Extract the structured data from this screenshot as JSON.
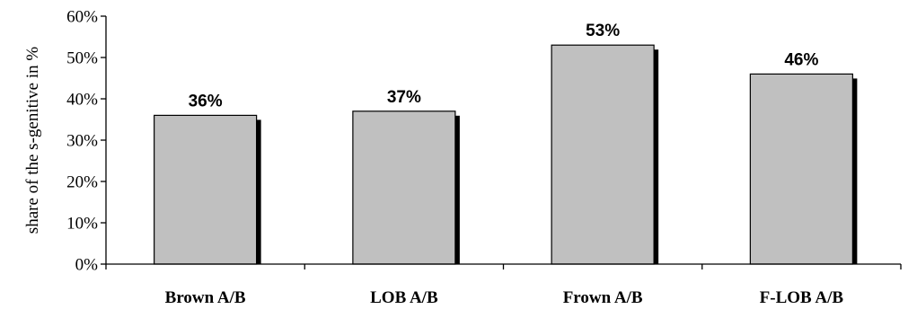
{
  "chart_data": {
    "type": "bar",
    "title": "",
    "xlabel": "",
    "ylabel": "share of the s-genitive in %",
    "categories": [
      "Brown A/B",
      "LOB A/B",
      "Frown A/B",
      "F-LOB A/B"
    ],
    "values": [
      36,
      37,
      53,
      46
    ],
    "data_labels": [
      "36%",
      "37%",
      "53%",
      "46%"
    ],
    "ylim": [
      0,
      60
    ],
    "y_ticks": [
      0,
      10,
      20,
      30,
      40,
      50,
      60
    ],
    "y_tick_labels": [
      "0%",
      "10%",
      "20%",
      "30%",
      "40%",
      "50%",
      "60%"
    ],
    "grid": false,
    "legend": "none",
    "colors": {
      "bar_fill": "#c0c0c0",
      "bar_stroke": "#000000",
      "bar_shadow": "#000000",
      "axis": "#000000"
    }
  }
}
